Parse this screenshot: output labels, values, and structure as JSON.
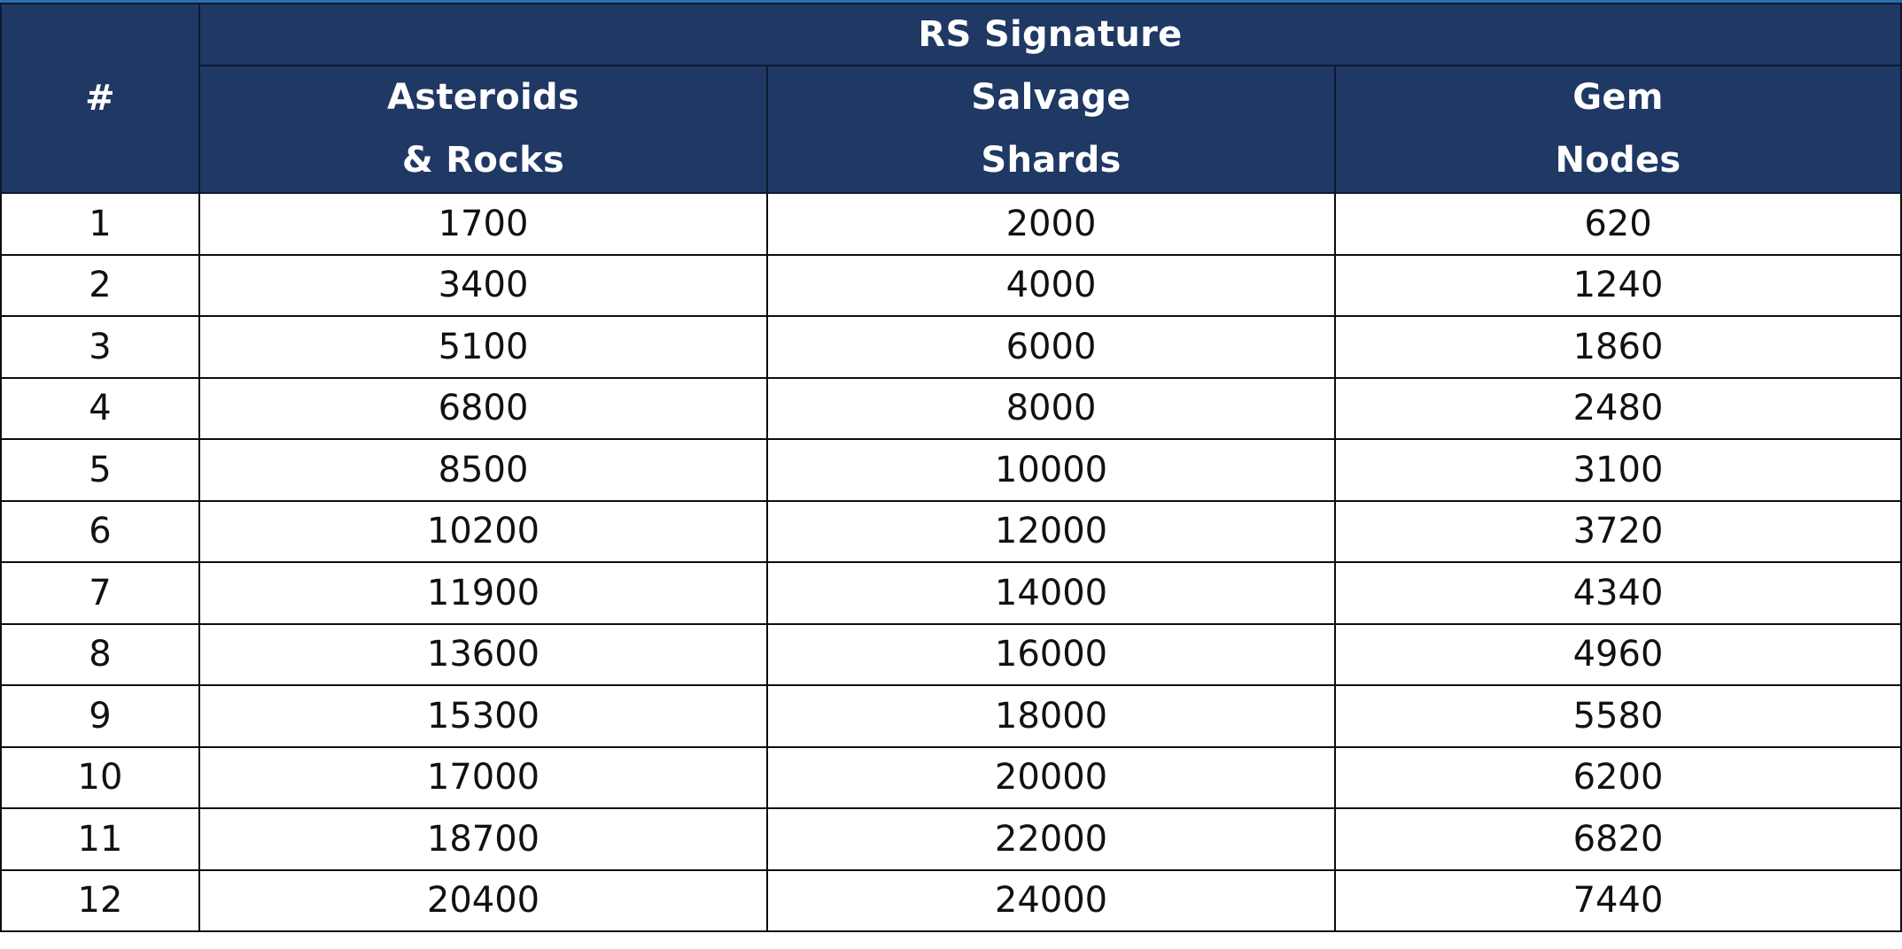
{
  "table": {
    "group_header": "RS Signature",
    "index_header": "#",
    "columns": [
      {
        "line1": "Asteroids",
        "line2": "& Rocks"
      },
      {
        "line1": "Salvage",
        "line2": "Shards"
      },
      {
        "line1": "Gem",
        "line2": "Nodes"
      }
    ],
    "rows": [
      {
        "n": "1",
        "asteroids": "1700",
        "salvage": "2000",
        "gem": "620"
      },
      {
        "n": "2",
        "asteroids": "3400",
        "salvage": "4000",
        "gem": "1240"
      },
      {
        "n": "3",
        "asteroids": "5100",
        "salvage": "6000",
        "gem": "1860"
      },
      {
        "n": "4",
        "asteroids": "6800",
        "salvage": "8000",
        "gem": "2480"
      },
      {
        "n": "5",
        "asteroids": "8500",
        "salvage": "10000",
        "gem": "3100"
      },
      {
        "n": "6",
        "asteroids": "10200",
        "salvage": "12000",
        "gem": "3720"
      },
      {
        "n": "7",
        "asteroids": "11900",
        "salvage": "14000",
        "gem": "4340"
      },
      {
        "n": "8",
        "asteroids": "13600",
        "salvage": "16000",
        "gem": "4960"
      },
      {
        "n": "9",
        "asteroids": "15300",
        "salvage": "18000",
        "gem": "5580"
      },
      {
        "n": "10",
        "asteroids": "17000",
        "salvage": "20000",
        "gem": "6200"
      },
      {
        "n": "11",
        "asteroids": "18700",
        "salvage": "22000",
        "gem": "6820"
      },
      {
        "n": "12",
        "asteroids": "20400",
        "salvage": "24000",
        "gem": "7440"
      }
    ]
  },
  "colors": {
    "header_bg": "#1f3864",
    "header_text": "#ffffff",
    "cell_bg": "#ffffff",
    "border": "#0d0d0d",
    "top_strip": "#2a6fb0"
  }
}
